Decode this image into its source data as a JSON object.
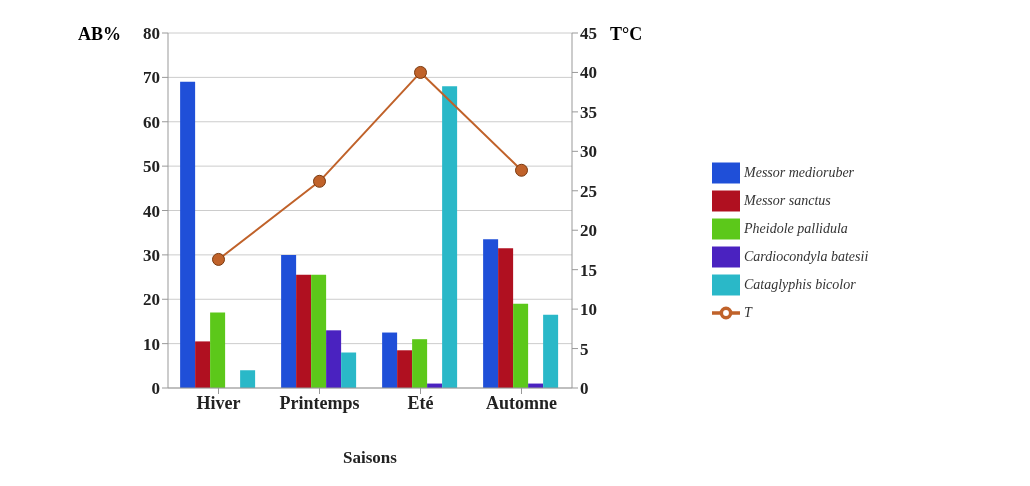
{
  "chart_data": {
    "type": "bar",
    "xlabel": "Saisons",
    "ylabel": "AB%",
    "y2label": "T°C",
    "categories": [
      "Hiver",
      "Printemps",
      "Eté",
      "Automne"
    ],
    "series": [
      {
        "name": "Messor medioruber",
        "color": "#1f4fd8",
        "values": [
          69,
          30,
          12.5,
          33.5
        ]
      },
      {
        "name": "Messor sanctus",
        "color": "#b01020",
        "values": [
          10.5,
          25.5,
          8.5,
          31.5
        ]
      },
      {
        "name": "Pheidole pallidula",
        "color": "#5cc81a",
        "values": [
          17,
          25.5,
          11,
          19
        ]
      },
      {
        "name": "Cardiocondyla batesii",
        "color": "#4a22c0",
        "values": [
          0,
          13,
          1,
          1
        ]
      },
      {
        "name": "Cataglyphis bicolor",
        "color": "#2ab8c8",
        "values": [
          4,
          8,
          68,
          16.5
        ]
      },
      {
        "name": "T",
        "type": "line",
        "axis": "y2",
        "color": "#c0622a",
        "values": [
          16.3,
          26.2,
          40,
          27.6
        ]
      }
    ],
    "ylim": [
      0,
      80
    ],
    "yticks": [
      0,
      10,
      20,
      30,
      40,
      50,
      60,
      70,
      80
    ],
    "y2lim": [
      0,
      45
    ],
    "y2ticks": [
      0,
      5,
      10,
      15,
      20,
      25,
      30,
      35,
      40,
      45
    ],
    "grid": "y",
    "legend": "right",
    "marker": "circle"
  }
}
